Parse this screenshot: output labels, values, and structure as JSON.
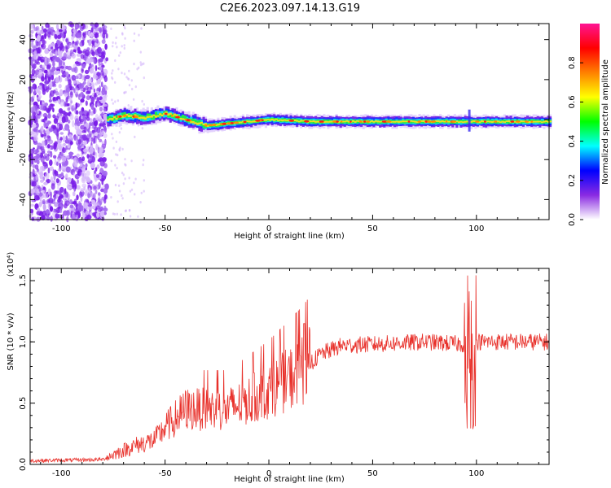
{
  "figure_title": "C2E6.2023.097.14.13.G19",
  "chart_data": [
    {
      "type": "heatmap",
      "xlabel": "Height of straight line (km)",
      "ylabel": "Frequency (Hz)",
      "xlim": [
        -115,
        135
      ],
      "ylim": [
        -50,
        48
      ],
      "x_ticks": [
        -100,
        -50,
        0,
        50,
        100
      ],
      "y_ticks": [
        -40,
        -20,
        0,
        20,
        40
      ],
      "colorbar": {
        "label": "Normalized spectral amplitude",
        "range": [
          0,
          1
        ],
        "ticks": [
          "0.0",
          "0.2",
          "0.4",
          "0.6",
          "0.8"
        ],
        "colors": [
          "#ffffff",
          "#8a2be2",
          "#0000ff",
          "#00ffff",
          "#00ff00",
          "#ffff00",
          "#ff8000",
          "#ff0000",
          "#ff1493"
        ]
      },
      "ridge": {
        "description_points": [
          {
            "x": -78,
            "y": 0
          },
          {
            "x": -70,
            "y": 2
          },
          {
            "x": -60,
            "y": 1
          },
          {
            "x": -50,
            "y": 3
          },
          {
            "x": -40,
            "y": 0
          },
          {
            "x": -30,
            "y": -3
          },
          {
            "x": -20,
            "y": -2
          },
          {
            "x": -10,
            "y": -1
          },
          {
            "x": 0,
            "y": 0
          },
          {
            "x": 20,
            "y": -1
          },
          {
            "x": 50,
            "y": -1
          },
          {
            "x": 75,
            "y": -1
          },
          {
            "x": 95,
            "y": -1
          },
          {
            "x": 135,
            "y": -1
          }
        ]
      }
    },
    {
      "type": "line",
      "xlabel": "Height of straight line (km)",
      "ylabel": "SNR (10 * v/v)",
      "y_multiplier": "(x10⁴)",
      "xlim": [
        -115,
        135
      ],
      "ylim": [
        0,
        1.6
      ],
      "x_ticks": [
        -100,
        -50,
        0,
        50,
        100
      ],
      "y_ticks": [
        "0.0",
        "0.5",
        "1.0",
        "1.5"
      ],
      "series": [
        {
          "color": "#e8302a",
          "envelope": [
            [
              -115,
              0.03
            ],
            [
              -80,
              0.04
            ],
            [
              -75,
              0.08
            ],
            [
              -65,
              0.15
            ],
            [
              -55,
              0.2
            ],
            [
              -50,
              0.3
            ],
            [
              -40,
              0.45
            ],
            [
              -30,
              0.45
            ],
            [
              -20,
              0.45
            ],
            [
              -10,
              0.52
            ],
            [
              0,
              0.6
            ],
            [
              10,
              0.7
            ],
            [
              17,
              0.78
            ],
            [
              25,
              0.9
            ],
            [
              35,
              0.97
            ],
            [
              50,
              0.98
            ],
            [
              75,
              1.0
            ],
            [
              95,
              0.98
            ],
            [
              97,
              0.9
            ],
            [
              100,
              1.0
            ],
            [
              135,
              1.0
            ]
          ]
        }
      ]
    }
  ]
}
